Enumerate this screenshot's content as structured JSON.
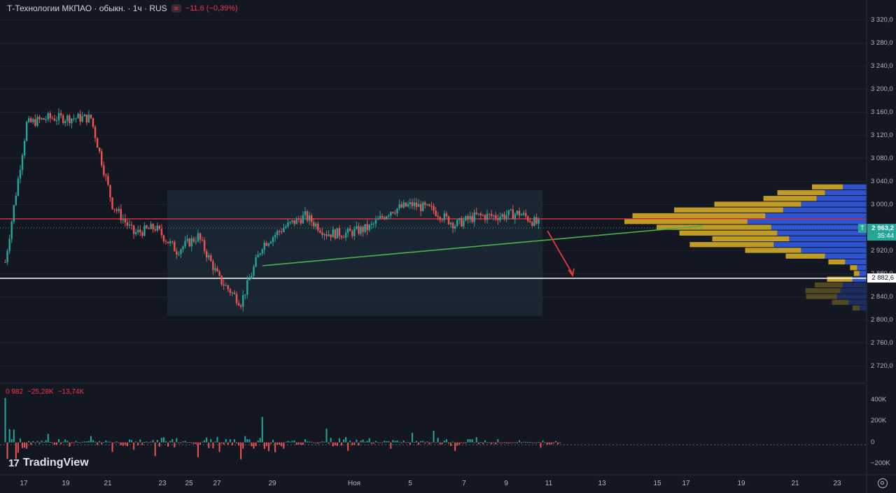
{
  "header": {
    "symbol": "Т-Технологии МКПАО · обыкн. · 1ч · RUS",
    "change": "−11,6 (−0,39%)"
  },
  "volume_header": {
    "v1": "0 982",
    "v2": "−25,28K",
    "v3": "−13,74K"
  },
  "price_axis": [
    "3 320,0",
    "3 280,0",
    "3 240,0",
    "3 200,0",
    "3 160,0",
    "3 120,0",
    "3 080,0",
    "3 040,0",
    "3 000,0",
    "2 920,0",
    "2 880,0",
    "2 840,0",
    "2 800,0",
    "2 760,0",
    "2 720,0"
  ],
  "volume_axis": [
    "400K",
    "200K",
    "0",
    "−200K"
  ],
  "date_axis": [
    "17",
    "19",
    "21",
    "23",
    "25",
    "27",
    "29",
    "Ноя",
    "5",
    "7",
    "9",
    "11",
    "13",
    "15",
    "17",
    "19",
    "21",
    "23"
  ],
  "current_price": {
    "marker": "T",
    "value": "2 963,2",
    "countdown": "35:44"
  },
  "support_label": "2 882,6",
  "logo": "TradingView",
  "colors": {
    "up": "#26a69a",
    "down": "#ef5350",
    "bg": "#131722",
    "resistance": "#f23645",
    "support": "#ffffff",
    "trend": "#4caf50",
    "arrow": "#e53935",
    "vp_up": "#2f56d8",
    "vp_down": "#c9a227"
  },
  "chart_data": {
    "type": "line",
    "title": "Т-Технологии МКПАО · обыкн. · 1ч · RUS",
    "y_range": [
      2700,
      3340
    ],
    "x": [
      "Oct 16",
      "Oct 17",
      "Oct 18",
      "Oct 19",
      "Oct 20",
      "Oct 21",
      "Oct 22",
      "Oct 23",
      "Oct 24",
      "Oct 25",
      "Oct 26",
      "Oct 27",
      "Oct 28",
      "Oct 29",
      "Oct 30",
      "Oct 31",
      "Nov 1",
      "Nov 2",
      "Nov 3",
      "Nov 4",
      "Nov 5",
      "Nov 6",
      "Nov 7",
      "Nov 8",
      "Nov 9",
      "Nov 10"
    ],
    "series": [
      {
        "values": [
          2900,
          3140,
          3150,
          3150,
          3150,
          3000,
          2950,
          2960,
          2920,
          2945,
          2870,
          2830,
          2930,
          2960,
          2980,
          2950,
          2950,
          2960,
          2990,
          3000,
          2990,
          2965,
          2980,
          2980,
          2985,
          2963
        ]
      }
    ],
    "levels": {
      "resistance": 2982,
      "support": 2882.6,
      "current": 2963.2
    },
    "consolidation_range": {
      "from": "Oct 23",
      "to": "Nov 10",
      "low": 2818,
      "high": 3025
    },
    "volume_delta": [
      {
        "x": "Oct 16",
        "v": 420000
      },
      {
        "x": "Oct 17",
        "v": -60000
      },
      {
        "x": "Oct 18",
        "v": 80000
      },
      {
        "x": "Oct 19",
        "v": -40000
      },
      {
        "x": "Oct 20",
        "v": 60000
      },
      {
        "x": "Oct 21",
        "v": -90000
      },
      {
        "x": "Oct 22",
        "v": -70000
      },
      {
        "x": "Oct 23",
        "v": -130000
      },
      {
        "x": "Oct 24",
        "v": 40000
      },
      {
        "x": "Oct 25",
        "v": -140000
      },
      {
        "x": "Oct 26",
        "v": -90000
      },
      {
        "x": "Oct 27",
        "v": -160000
      },
      {
        "x": "Oct 28",
        "v": 240000
      },
      {
        "x": "Oct 29",
        "v": -60000
      },
      {
        "x": "Oct 30",
        "v": 30000
      },
      {
        "x": "Oct 31",
        "v": 130000
      },
      {
        "x": "Nov 1",
        "v": -80000
      },
      {
        "x": "Nov 2",
        "v": 40000
      },
      {
        "x": "Nov 3",
        "v": -60000
      },
      {
        "x": "Nov 4",
        "v": 90000
      },
      {
        "x": "Nov 5",
        "v": 110000
      },
      {
        "x": "Nov 6",
        "v": -80000
      },
      {
        "x": "Nov 7",
        "v": 50000
      },
      {
        "x": "Nov 8",
        "v": 30000
      },
      {
        "x": "Nov 9",
        "v": 20000
      },
      {
        "x": "Nov 10",
        "v": -50000
      }
    ],
    "volume_range": [
      -260000,
      480000
    ],
    "volume_profile": [
      {
        "price": 3030,
        "up": 0.2,
        "down": 0.22
      },
      {
        "price": 3020,
        "up": 0.35,
        "down": 0.34
      },
      {
        "price": 3010,
        "up": 0.42,
        "down": 0.38
      },
      {
        "price": 3000,
        "up": 0.55,
        "down": 0.62
      },
      {
        "price": 2990,
        "up": 0.7,
        "down": 0.78
      },
      {
        "price": 2980,
        "up": 0.85,
        "down": 0.95
      },
      {
        "price": 2970,
        "up": 1.0,
        "down": 0.88
      },
      {
        "price": 2960,
        "up": 0.8,
        "down": 0.82
      },
      {
        "price": 2950,
        "up": 0.75,
        "down": 0.7
      },
      {
        "price": 2940,
        "up": 0.65,
        "down": 0.55
      },
      {
        "price": 2930,
        "up": 0.78,
        "down": 0.6
      },
      {
        "price": 2920,
        "up": 0.55,
        "down": 0.4
      },
      {
        "price": 2910,
        "up": 0.35,
        "down": 0.28
      },
      {
        "price": 2900,
        "up": 0.18,
        "down": 0.12
      },
      {
        "price": 2890,
        "up": 0.08,
        "down": 0.05
      },
      {
        "price": 2880,
        "up": 0.06,
        "down": 0.04
      },
      {
        "price": 2870,
        "up": 0.12,
        "down": 0.18
      },
      {
        "price": 2860,
        "up": 0.2,
        "down": 0.2
      },
      {
        "price": 2850,
        "up": 0.22,
        "down": 0.25
      },
      {
        "price": 2840,
        "up": 0.25,
        "down": 0.22
      },
      {
        "price": 2830,
        "up": 0.15,
        "down": 0.12
      },
      {
        "price": 2820,
        "up": 0.06,
        "down": 0.05
      }
    ]
  }
}
